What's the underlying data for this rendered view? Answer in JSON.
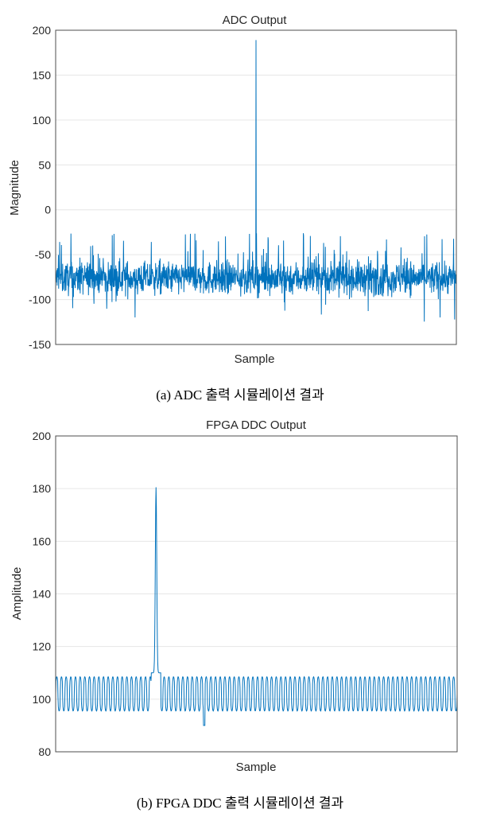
{
  "chart_data": [
    {
      "type": "line",
      "title": "ADC Output",
      "xlabel": "Sample",
      "ylabel": "Magnitude",
      "ylim": [
        -150,
        200
      ],
      "yticks": [
        "200",
        "150",
        "100",
        "50",
        "0",
        "-50",
        "-100",
        "-150"
      ],
      "grid": true,
      "color": "#0072bd",
      "series": [
        {
          "description_values": {
            "noise_floor_center": -76,
            "noise_band": [
              -100,
              -50
            ],
            "noise_min": -136,
            "noise_max": -24,
            "peak_value": 189,
            "peak_position_fraction": 0.5
          }
        }
      ],
      "caption": "(a)  ADC  출력  시뮬레이션  결과"
    },
    {
      "type": "line",
      "title": "FPGA DDC Output",
      "xlabel": "Sample",
      "ylabel": "Amplitude",
      "ylim": [
        80,
        200
      ],
      "yticks": [
        "200",
        "180",
        "160",
        "140",
        "120",
        "100",
        "80"
      ],
      "grid": true,
      "color": "#0072bd",
      "series": [
        {
          "description_values": {
            "ripple_high": 108.5,
            "ripple_low": 95.5,
            "peak_value": 180.5,
            "min_value": 90,
            "peak_position_fraction": 0.25
          }
        }
      ],
      "caption": "(b)  FPGA  DDC  출력  시뮬레이션  결과"
    }
  ]
}
